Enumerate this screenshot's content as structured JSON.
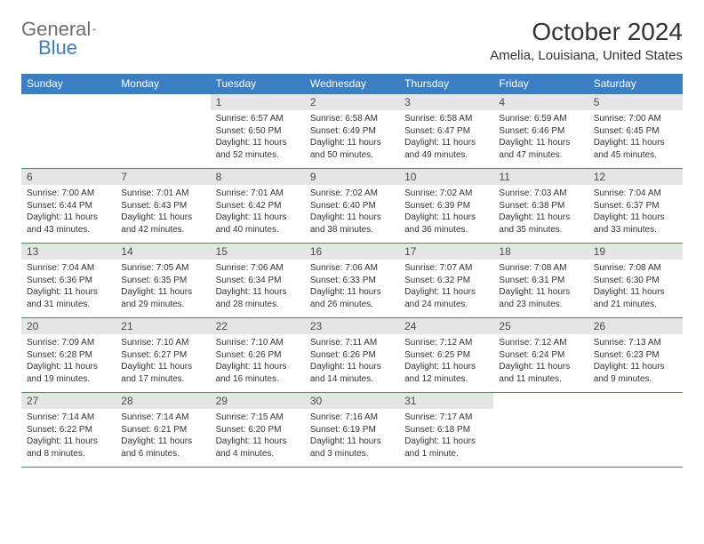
{
  "logo": {
    "part1": "General",
    "part2": "Blue"
  },
  "title": "October 2024",
  "location": "Amelia, Louisiana, United States",
  "colors": {
    "header_bg": "#3a7fc4",
    "header_text": "#ffffff",
    "daynum_bg": "#e5e5e5",
    "text": "#333333",
    "logo_gray": "#6e6e6e",
    "logo_blue": "#3a7fc4",
    "border": "#3a7fc4"
  },
  "day_headers": [
    "Sunday",
    "Monday",
    "Tuesday",
    "Wednesday",
    "Thursday",
    "Friday",
    "Saturday"
  ],
  "weeks": [
    [
      {
        "n": "",
        "sr": "",
        "ss": "",
        "dl": "",
        "empty": true
      },
      {
        "n": "",
        "sr": "",
        "ss": "",
        "dl": "",
        "empty": true
      },
      {
        "n": "1",
        "sr": "Sunrise: 6:57 AM",
        "ss": "Sunset: 6:50 PM",
        "dl": "Daylight: 11 hours and 52 minutes."
      },
      {
        "n": "2",
        "sr": "Sunrise: 6:58 AM",
        "ss": "Sunset: 6:49 PM",
        "dl": "Daylight: 11 hours and 50 minutes."
      },
      {
        "n": "3",
        "sr": "Sunrise: 6:58 AM",
        "ss": "Sunset: 6:47 PM",
        "dl": "Daylight: 11 hours and 49 minutes."
      },
      {
        "n": "4",
        "sr": "Sunrise: 6:59 AM",
        "ss": "Sunset: 6:46 PM",
        "dl": "Daylight: 11 hours and 47 minutes."
      },
      {
        "n": "5",
        "sr": "Sunrise: 7:00 AM",
        "ss": "Sunset: 6:45 PM",
        "dl": "Daylight: 11 hours and 45 minutes."
      }
    ],
    [
      {
        "n": "6",
        "sr": "Sunrise: 7:00 AM",
        "ss": "Sunset: 6:44 PM",
        "dl": "Daylight: 11 hours and 43 minutes."
      },
      {
        "n": "7",
        "sr": "Sunrise: 7:01 AM",
        "ss": "Sunset: 6:43 PM",
        "dl": "Daylight: 11 hours and 42 minutes."
      },
      {
        "n": "8",
        "sr": "Sunrise: 7:01 AM",
        "ss": "Sunset: 6:42 PM",
        "dl": "Daylight: 11 hours and 40 minutes."
      },
      {
        "n": "9",
        "sr": "Sunrise: 7:02 AM",
        "ss": "Sunset: 6:40 PM",
        "dl": "Daylight: 11 hours and 38 minutes."
      },
      {
        "n": "10",
        "sr": "Sunrise: 7:02 AM",
        "ss": "Sunset: 6:39 PM",
        "dl": "Daylight: 11 hours and 36 minutes."
      },
      {
        "n": "11",
        "sr": "Sunrise: 7:03 AM",
        "ss": "Sunset: 6:38 PM",
        "dl": "Daylight: 11 hours and 35 minutes."
      },
      {
        "n": "12",
        "sr": "Sunrise: 7:04 AM",
        "ss": "Sunset: 6:37 PM",
        "dl": "Daylight: 11 hours and 33 minutes."
      }
    ],
    [
      {
        "n": "13",
        "sr": "Sunrise: 7:04 AM",
        "ss": "Sunset: 6:36 PM",
        "dl": "Daylight: 11 hours and 31 minutes."
      },
      {
        "n": "14",
        "sr": "Sunrise: 7:05 AM",
        "ss": "Sunset: 6:35 PM",
        "dl": "Daylight: 11 hours and 29 minutes."
      },
      {
        "n": "15",
        "sr": "Sunrise: 7:06 AM",
        "ss": "Sunset: 6:34 PM",
        "dl": "Daylight: 11 hours and 28 minutes."
      },
      {
        "n": "16",
        "sr": "Sunrise: 7:06 AM",
        "ss": "Sunset: 6:33 PM",
        "dl": "Daylight: 11 hours and 26 minutes."
      },
      {
        "n": "17",
        "sr": "Sunrise: 7:07 AM",
        "ss": "Sunset: 6:32 PM",
        "dl": "Daylight: 11 hours and 24 minutes."
      },
      {
        "n": "18",
        "sr": "Sunrise: 7:08 AM",
        "ss": "Sunset: 6:31 PM",
        "dl": "Daylight: 11 hours and 23 minutes."
      },
      {
        "n": "19",
        "sr": "Sunrise: 7:08 AM",
        "ss": "Sunset: 6:30 PM",
        "dl": "Daylight: 11 hours and 21 minutes."
      }
    ],
    [
      {
        "n": "20",
        "sr": "Sunrise: 7:09 AM",
        "ss": "Sunset: 6:28 PM",
        "dl": "Daylight: 11 hours and 19 minutes."
      },
      {
        "n": "21",
        "sr": "Sunrise: 7:10 AM",
        "ss": "Sunset: 6:27 PM",
        "dl": "Daylight: 11 hours and 17 minutes."
      },
      {
        "n": "22",
        "sr": "Sunrise: 7:10 AM",
        "ss": "Sunset: 6:26 PM",
        "dl": "Daylight: 11 hours and 16 minutes."
      },
      {
        "n": "23",
        "sr": "Sunrise: 7:11 AM",
        "ss": "Sunset: 6:26 PM",
        "dl": "Daylight: 11 hours and 14 minutes."
      },
      {
        "n": "24",
        "sr": "Sunrise: 7:12 AM",
        "ss": "Sunset: 6:25 PM",
        "dl": "Daylight: 11 hours and 12 minutes."
      },
      {
        "n": "25",
        "sr": "Sunrise: 7:12 AM",
        "ss": "Sunset: 6:24 PM",
        "dl": "Daylight: 11 hours and 11 minutes."
      },
      {
        "n": "26",
        "sr": "Sunrise: 7:13 AM",
        "ss": "Sunset: 6:23 PM",
        "dl": "Daylight: 11 hours and 9 minutes."
      }
    ],
    [
      {
        "n": "27",
        "sr": "Sunrise: 7:14 AM",
        "ss": "Sunset: 6:22 PM",
        "dl": "Daylight: 11 hours and 8 minutes."
      },
      {
        "n": "28",
        "sr": "Sunrise: 7:14 AM",
        "ss": "Sunset: 6:21 PM",
        "dl": "Daylight: 11 hours and 6 minutes."
      },
      {
        "n": "29",
        "sr": "Sunrise: 7:15 AM",
        "ss": "Sunset: 6:20 PM",
        "dl": "Daylight: 11 hours and 4 minutes."
      },
      {
        "n": "30",
        "sr": "Sunrise: 7:16 AM",
        "ss": "Sunset: 6:19 PM",
        "dl": "Daylight: 11 hours and 3 minutes."
      },
      {
        "n": "31",
        "sr": "Sunrise: 7:17 AM",
        "ss": "Sunset: 6:18 PM",
        "dl": "Daylight: 11 hours and 1 minute."
      },
      {
        "n": "",
        "sr": "",
        "ss": "",
        "dl": "",
        "empty": true
      },
      {
        "n": "",
        "sr": "",
        "ss": "",
        "dl": "",
        "empty": true
      }
    ]
  ]
}
